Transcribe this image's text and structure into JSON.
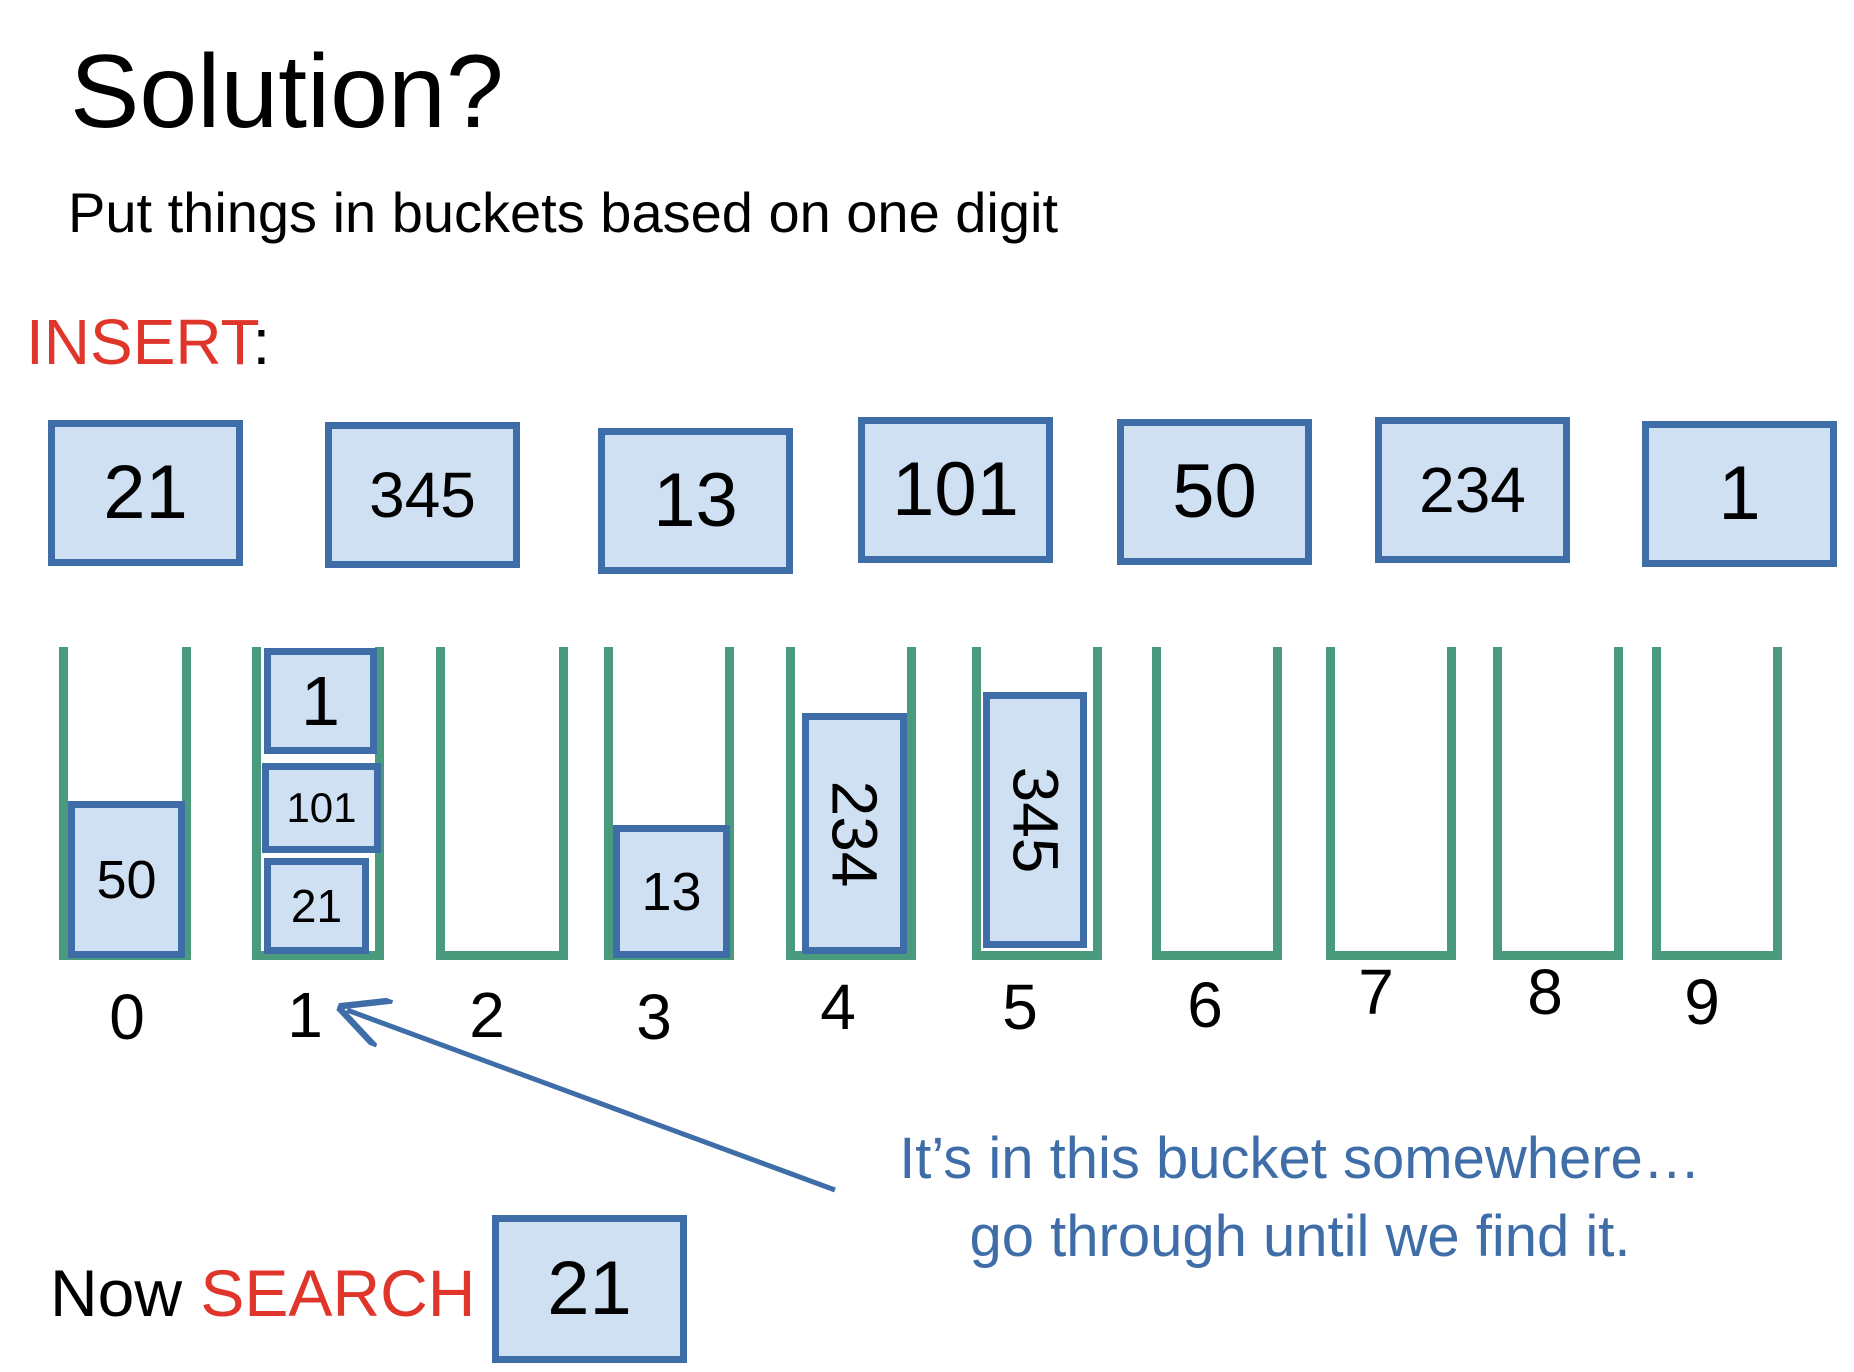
{
  "title": "Solution?",
  "subtitle": "Put things in buckets based on one digit",
  "insert": {
    "keyword": "INSERT",
    "suffix": ":"
  },
  "insert_items": [
    "21",
    "345",
    "13",
    "101",
    "50",
    "234",
    "1"
  ],
  "buckets": [
    "0",
    "1",
    "2",
    "3",
    "4",
    "5",
    "6",
    "7",
    "8",
    "9"
  ],
  "bucket_contents": {
    "b0": [
      "50"
    ],
    "b1": [
      "1",
      "101",
      "21"
    ],
    "b3": [
      "13"
    ],
    "b4": [
      "234"
    ],
    "b5": [
      "345"
    ]
  },
  "annotation": {
    "line1": "It’s in this bucket somewhere…",
    "line2": "go through until we find it."
  },
  "search": {
    "prefix": "Now ",
    "keyword": "SEARCH",
    "value": "21"
  },
  "colors": {
    "box_fill": "#cfe0f3",
    "box_border": "#3e6da8",
    "bucket": "#4a9a7e",
    "keyword": "#e0352b",
    "annotation": "#3e6da8"
  }
}
